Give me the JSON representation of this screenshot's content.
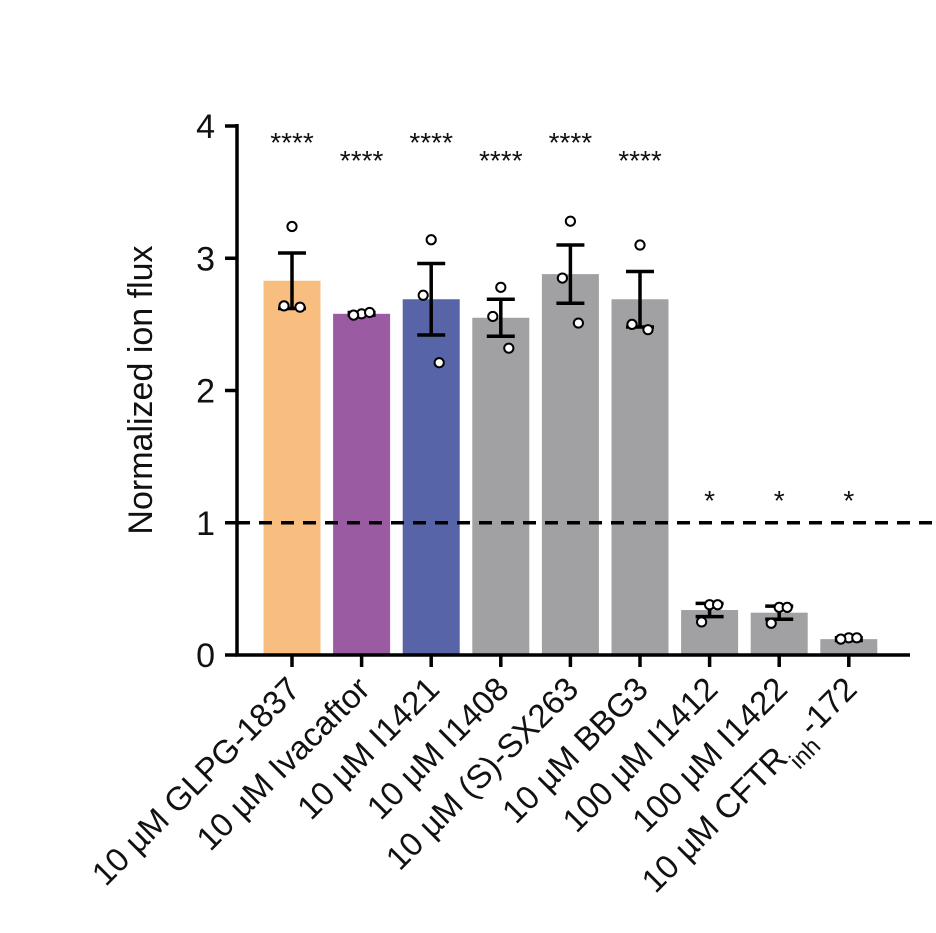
{
  "chart_data": {
    "type": "bar",
    "title": "",
    "xlabel": "",
    "ylabel": "Normalized ion flux",
    "ylim": [
      0,
      4
    ],
    "yticks": [
      "0",
      "1",
      "2",
      "3",
      "4"
    ],
    "reference_line": 1,
    "categories": [
      {
        "prefix": "10 µM GLPG-1837",
        "sub": "",
        "suffix": ""
      },
      {
        "prefix": "10 µM Ivacaftor",
        "sub": "",
        "suffix": ""
      },
      {
        "prefix": "10 µM I1421",
        "sub": "",
        "suffix": ""
      },
      {
        "prefix": "10 µM I1408",
        "sub": "",
        "suffix": ""
      },
      {
        "prefix": "10 µM (S)-SX263",
        "sub": "",
        "suffix": ""
      },
      {
        "prefix": "10 µM BBG3",
        "sub": "",
        "suffix": ""
      },
      {
        "prefix": "100 µM I1412",
        "sub": "",
        "suffix": ""
      },
      {
        "prefix": "100 µM I1422",
        "sub": "",
        "suffix": ""
      },
      {
        "prefix": "10 µM CFTR",
        "sub": "inh",
        "suffix": "-172"
      }
    ],
    "values": [
      2.83,
      2.58,
      2.69,
      2.55,
      2.88,
      2.69,
      0.34,
      0.32,
      0.12
    ],
    "sem": [
      0.21,
      0.01,
      0.27,
      0.14,
      0.22,
      0.21,
      0.05,
      0.05,
      0.01
    ],
    "points": [
      [
        3.24,
        2.64,
        2.63
      ],
      [
        2.58,
        2.57,
        2.59
      ],
      [
        3.14,
        2.72,
        2.21
      ],
      [
        2.78,
        2.56,
        2.32
      ],
      [
        3.28,
        2.85,
        2.51
      ],
      [
        3.1,
        2.5,
        2.46
      ],
      [
        0.38,
        0.25,
        0.38
      ],
      [
        0.36,
        0.24,
        0.36
      ],
      [
        0.13,
        0.12,
        0.13
      ]
    ],
    "colors": [
      "#F8BE80",
      "#9B5BA3",
      "#5764A8",
      "#A1A1A4",
      "#A1A1A4",
      "#A1A1A4",
      "#A1A1A4",
      "#A1A1A4",
      "#A1A1A4"
    ],
    "significance": [
      "****",
      "****",
      "****",
      "****",
      "****",
      "****",
      "*",
      "*",
      "*"
    ]
  }
}
